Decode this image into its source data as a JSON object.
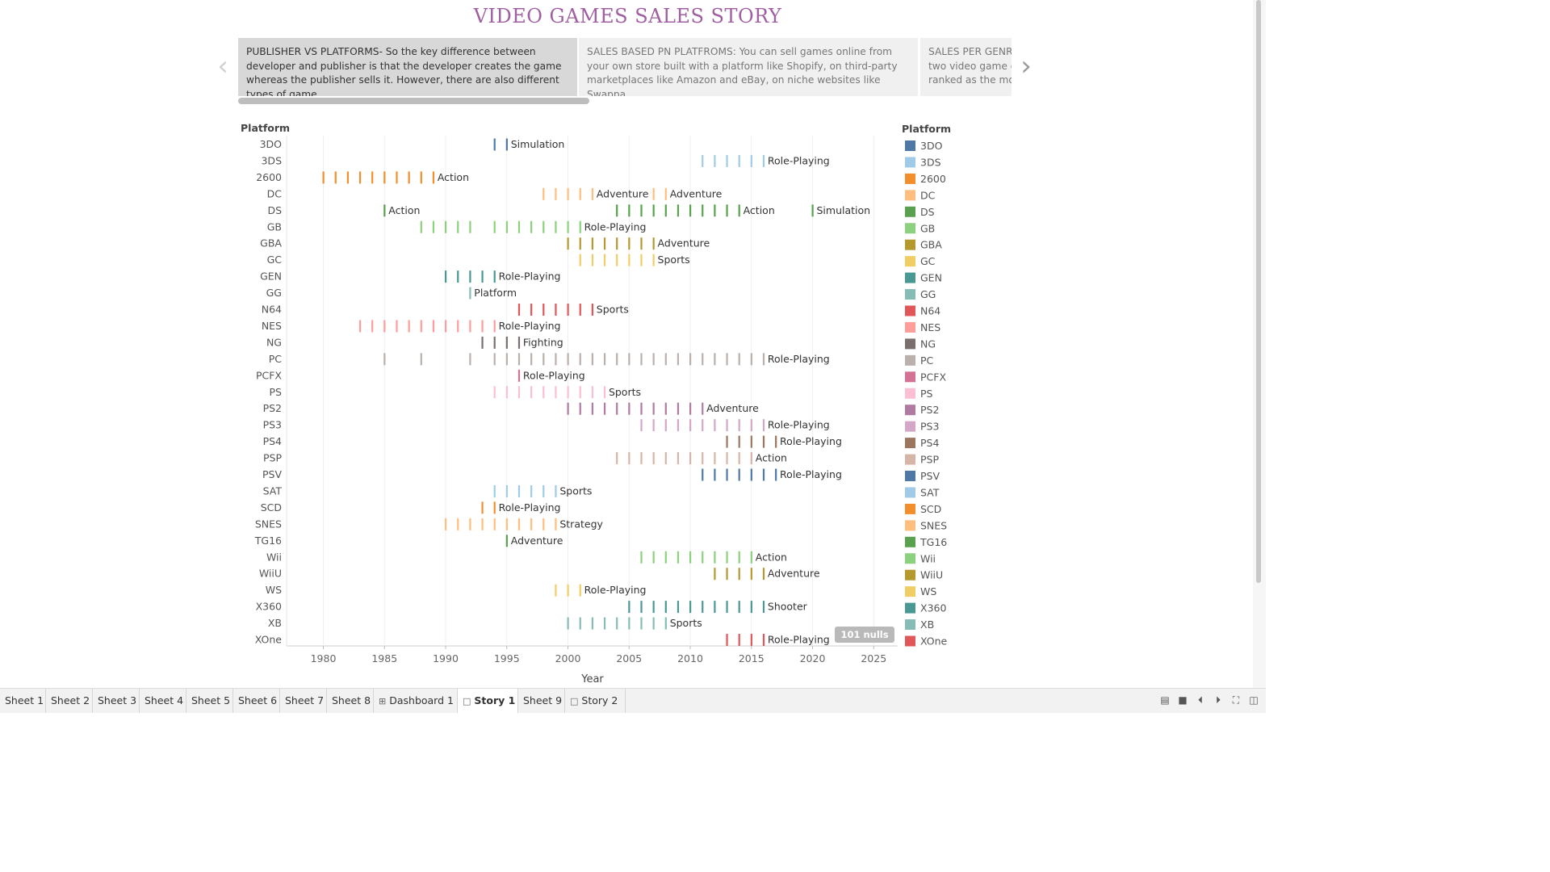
{
  "story_title": "VIDEO GAMES SALES STORY",
  "story_points": [
    "PUBLISHER VS PLATFORMS- So the key difference between developer and publisher is that the developer creates the game whereas the publisher sells it. However, there are also different types of game",
    "SALES BASED PN PLATFROMS: You can sell games online from your own store built with a platform like Shopify, on third-party marketplaces like Amazon and eBay, on niche websites like Swappa",
    "SALES PER GENRE: two video game ge ranked as the mos"
  ],
  "nav": {
    "prev_icon": "chevron-left-icon",
    "next_icon": "chevron-right-icon"
  },
  "chart_data": {
    "type": "scatter",
    "mark": "tick",
    "xlabel": "Year",
    "ylabel": "Platform",
    "xlim": [
      1977,
      2027
    ],
    "xticks": [
      1980,
      1985,
      1990,
      1995,
      2000,
      2005,
      2010,
      2015,
      2020,
      2025
    ],
    "legend_title": "Platform",
    "legend_position": "right",
    "null_indicator": "101 nulls",
    "series": [
      {
        "name": "3DO",
        "color": "#4e79a7",
        "years": [
          1994,
          1995
        ],
        "labels": [
          {
            "year": 1995,
            "text": "Simulation"
          }
        ]
      },
      {
        "name": "3DS",
        "color": "#a0cbe8",
        "years": [
          2011,
          2012,
          2013,
          2014,
          2015,
          2016
        ],
        "labels": [
          {
            "year": 2016,
            "text": "Role-Playing"
          }
        ]
      },
      {
        "name": "2600",
        "color": "#f28e2b",
        "years": [
          1980,
          1981,
          1982,
          1983,
          1984,
          1985,
          1986,
          1987,
          1988,
          1989
        ],
        "labels": [
          {
            "year": 1989,
            "text": "Action"
          }
        ]
      },
      {
        "name": "DC",
        "color": "#ffbe7d",
        "years": [
          1998,
          1999,
          2000,
          2001,
          2002,
          2007,
          2008
        ],
        "labels": [
          {
            "year": 2002,
            "text": "Adventure"
          },
          {
            "year": 2008,
            "text": "Adventure"
          }
        ]
      },
      {
        "name": "DS",
        "color": "#59a14f",
        "years": [
          1985,
          2004,
          2005,
          2006,
          2007,
          2008,
          2009,
          2010,
          2011,
          2012,
          2013,
          2014,
          2020
        ],
        "labels": [
          {
            "year": 1985,
            "text": "Action"
          },
          {
            "year": 2014,
            "text": "Action"
          },
          {
            "year": 2020,
            "text": "Simulation"
          }
        ]
      },
      {
        "name": "GB",
        "color": "#8cd17d",
        "years": [
          1988,
          1989,
          1990,
          1991,
          1992,
          1994,
          1995,
          1996,
          1997,
          1998,
          1999,
          2000,
          2001
        ],
        "labels": [
          {
            "year": 2001,
            "text": "Role-Playing"
          }
        ]
      },
      {
        "name": "GBA",
        "color": "#b6992d",
        "years": [
          2000,
          2001,
          2002,
          2003,
          2004,
          2005,
          2006,
          2007
        ],
        "labels": [
          {
            "year": 2007,
            "text": "Adventure"
          }
        ]
      },
      {
        "name": "GC",
        "color": "#f1ce63",
        "years": [
          2001,
          2002,
          2003,
          2004,
          2005,
          2006,
          2007
        ],
        "labels": [
          {
            "year": 2007,
            "text": "Sports"
          }
        ]
      },
      {
        "name": "GEN",
        "color": "#499894",
        "years": [
          1990,
          1991,
          1992,
          1993,
          1994
        ],
        "labels": [
          {
            "year": 1994,
            "text": "Role-Playing"
          }
        ]
      },
      {
        "name": "GG",
        "color": "#86bcb6",
        "years": [
          1992
        ],
        "labels": [
          {
            "year": 1992,
            "text": "Platform"
          }
        ]
      },
      {
        "name": "N64",
        "color": "#e15759",
        "years": [
          1996,
          1997,
          1998,
          1999,
          2000,
          2001,
          2002
        ],
        "labels": [
          {
            "year": 2002,
            "text": "Sports"
          }
        ]
      },
      {
        "name": "NES",
        "color": "#ff9d9a",
        "years": [
          1983,
          1984,
          1985,
          1986,
          1987,
          1988,
          1989,
          1990,
          1991,
          1992,
          1993,
          1994
        ],
        "labels": [
          {
            "year": 1994,
            "text": "Role-Playing"
          }
        ]
      },
      {
        "name": "NG",
        "color": "#79706e",
        "years": [
          1993,
          1994,
          1995,
          1996
        ],
        "labels": [
          {
            "year": 1996,
            "text": "Fighting"
          }
        ]
      },
      {
        "name": "PC",
        "color": "#bab0ac",
        "years": [
          1985,
          1988,
          1992,
          1994,
          1995,
          1996,
          1997,
          1998,
          1999,
          2000,
          2001,
          2002,
          2003,
          2004,
          2005,
          2006,
          2007,
          2008,
          2009,
          2010,
          2011,
          2012,
          2013,
          2014,
          2015,
          2016
        ],
        "labels": [
          {
            "year": 2016,
            "text": "Role-Playing"
          }
        ]
      },
      {
        "name": "PCFX",
        "color": "#d37295",
        "years": [
          1996
        ],
        "labels": [
          {
            "year": 1996,
            "text": "Role-Playing"
          }
        ]
      },
      {
        "name": "PS",
        "color": "#fabfd2",
        "years": [
          1994,
          1995,
          1996,
          1997,
          1998,
          1999,
          2000,
          2001,
          2002,
          2003
        ],
        "labels": [
          {
            "year": 2003,
            "text": "Sports"
          }
        ]
      },
      {
        "name": "PS2",
        "color": "#b07aa1",
        "years": [
          2000,
          2001,
          2002,
          2003,
          2004,
          2005,
          2006,
          2007,
          2008,
          2009,
          2010,
          2011
        ],
        "labels": [
          {
            "year": 2011,
            "text": "Adventure"
          }
        ]
      },
      {
        "name": "PS3",
        "color": "#d4a6c8",
        "years": [
          2006,
          2007,
          2008,
          2009,
          2010,
          2011,
          2012,
          2013,
          2014,
          2015,
          2016
        ],
        "labels": [
          {
            "year": 2016,
            "text": "Role-Playing"
          }
        ]
      },
      {
        "name": "PS4",
        "color": "#9d7660",
        "years": [
          2013,
          2014,
          2015,
          2016,
          2017
        ],
        "labels": [
          {
            "year": 2017,
            "text": "Role-Playing"
          }
        ]
      },
      {
        "name": "PSP",
        "color": "#d7b5a6",
        "years": [
          2004,
          2005,
          2006,
          2007,
          2008,
          2009,
          2010,
          2011,
          2012,
          2013,
          2014,
          2015
        ],
        "labels": [
          {
            "year": 2015,
            "text": "Action"
          }
        ]
      },
      {
        "name": "PSV",
        "color": "#4e79a7",
        "years": [
          2011,
          2012,
          2013,
          2014,
          2015,
          2016,
          2017
        ],
        "labels": [
          {
            "year": 2017,
            "text": "Role-Playing"
          }
        ]
      },
      {
        "name": "SAT",
        "color": "#a0cbe8",
        "years": [
          1994,
          1995,
          1996,
          1997,
          1998,
          1999
        ],
        "labels": [
          {
            "year": 1999,
            "text": "Sports"
          }
        ]
      },
      {
        "name": "SCD",
        "color": "#f28e2b",
        "years": [
          1993,
          1994
        ],
        "labels": [
          {
            "year": 1994,
            "text": "Role-Playing"
          }
        ]
      },
      {
        "name": "SNES",
        "color": "#ffbe7d",
        "years": [
          1990,
          1991,
          1992,
          1993,
          1994,
          1995,
          1996,
          1997,
          1998,
          1999
        ],
        "labels": [
          {
            "year": 1999,
            "text": "Strategy"
          }
        ]
      },
      {
        "name": "TG16",
        "color": "#59a14f",
        "years": [
          1995
        ],
        "labels": [
          {
            "year": 1995,
            "text": "Adventure"
          }
        ]
      },
      {
        "name": "Wii",
        "color": "#8cd17d",
        "years": [
          2006,
          2007,
          2008,
          2009,
          2010,
          2011,
          2012,
          2013,
          2014,
          2015
        ],
        "labels": [
          {
            "year": 2015,
            "text": "Action"
          }
        ]
      },
      {
        "name": "WiiU",
        "color": "#b6992d",
        "years": [
          2012,
          2013,
          2014,
          2015,
          2016
        ],
        "labels": [
          {
            "year": 2016,
            "text": "Adventure"
          }
        ]
      },
      {
        "name": "WS",
        "color": "#f1ce63",
        "years": [
          1999,
          2000,
          2001
        ],
        "labels": [
          {
            "year": 2001,
            "text": "Role-Playing"
          }
        ]
      },
      {
        "name": "X360",
        "color": "#499894",
        "years": [
          2005,
          2006,
          2007,
          2008,
          2009,
          2010,
          2011,
          2012,
          2013,
          2014,
          2015,
          2016
        ],
        "labels": [
          {
            "year": 2016,
            "text": "Shooter"
          }
        ]
      },
      {
        "name": "XB",
        "color": "#86bcb6",
        "years": [
          2000,
          2001,
          2002,
          2003,
          2004,
          2005,
          2006,
          2007,
          2008
        ],
        "labels": [
          {
            "year": 2008,
            "text": "Sports"
          }
        ]
      },
      {
        "name": "XOne",
        "color": "#e15759",
        "years": [
          2013,
          2014,
          2015,
          2016
        ],
        "labels": [
          {
            "year": 2016,
            "text": "Role-Playing"
          }
        ]
      }
    ]
  },
  "tabs": [
    {
      "label": "Sheet 1",
      "icon": "",
      "active": false
    },
    {
      "label": "Sheet 2",
      "icon": "",
      "active": false
    },
    {
      "label": "Sheet 3",
      "icon": "",
      "active": false
    },
    {
      "label": "Sheet 4",
      "icon": "",
      "active": false
    },
    {
      "label": "Sheet 5",
      "icon": "",
      "active": false
    },
    {
      "label": "Sheet 6",
      "icon": "",
      "active": false
    },
    {
      "label": "Sheet 7",
      "icon": "",
      "active": false
    },
    {
      "label": "Sheet 8",
      "icon": "",
      "active": false
    },
    {
      "label": "Dashboard 1",
      "icon": "dashboard-icon",
      "active": false
    },
    {
      "label": "Story 1",
      "icon": "story-icon",
      "active": true
    },
    {
      "label": "Sheet 9",
      "icon": "",
      "active": false
    },
    {
      "label": "Story 2",
      "icon": "story-icon",
      "active": false
    }
  ],
  "controls": [
    "filmstrip-icon",
    "tabs-icon",
    "prev-sheet-icon",
    "next-sheet-icon",
    "fullscreen-icon",
    "presentation-icon"
  ]
}
